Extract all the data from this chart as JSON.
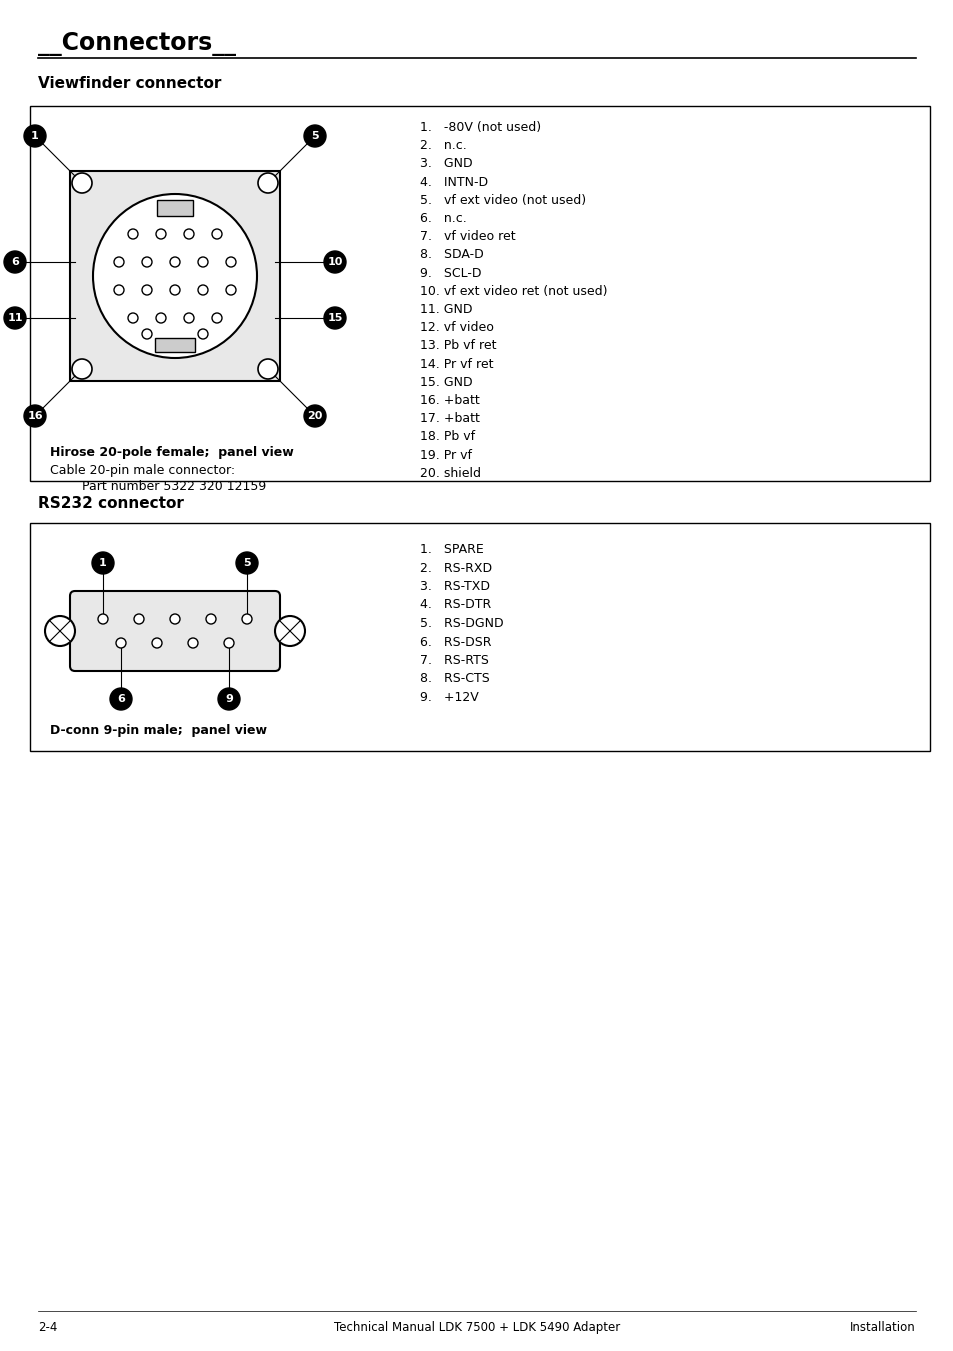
{
  "page_title": "__Connectors__",
  "section1_title": "Viewfinder connector",
  "section1_list": [
    "1.   -80V (not used)",
    "2.   n.c.",
    "3.   GND",
    "4.   INTN-D",
    "5.   vf ext video (not used)",
    "6.   n.c.",
    "7.   vf video ret",
    "8.   SDA-D",
    "9.   SCL-D",
    "10. vf ext video ret (not used)",
    "11. GND",
    "12. vf video",
    "13. Pb vf ret",
    "14. Pr vf ret",
    "15. GND",
    "16. +batt",
    "17. +batt",
    "18. Pb vf",
    "19. Pr vf",
    "20. shield"
  ],
  "section1_caption1": "Hirose 20-pole female;  panel view",
  "section1_caption2": "Cable 20-pin male connector:",
  "section1_caption3": "        Part number 5322 320 12159",
  "section2_title": "RS232 connector",
  "section2_list": [
    "1.   SPARE",
    "2.   RS-RXD",
    "3.   RS-TXD",
    "4.   RS-DTR",
    "5.   RS-DGND",
    "6.   RS-DSR",
    "7.   RS-RTS",
    "8.   RS-CTS",
    "9.   +12V"
  ],
  "section2_caption": "D-conn 9-pin male;  panel view",
  "footer_left": "2-4",
  "footer_center": "Technical Manual LDK 7500 + LDK 5490 Adapter",
  "footer_right": "Installation",
  "bg_color": "#ffffff",
  "text_color": "#000000"
}
